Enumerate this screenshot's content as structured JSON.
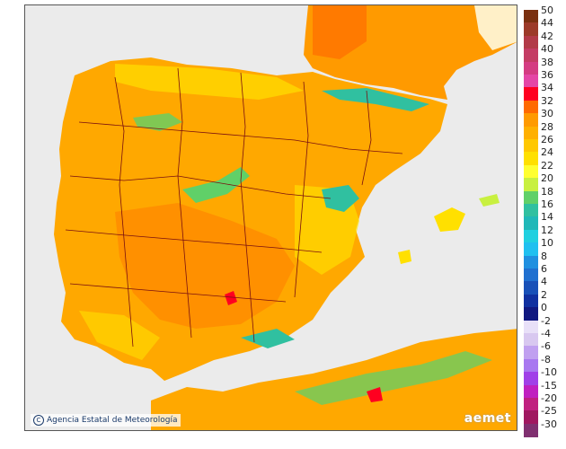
{
  "credit": {
    "text": "Agencia Estatal de Meteorología",
    "icon": "copyright-icon"
  },
  "logo": {
    "text": "aemet"
  },
  "legend": {
    "labels": [
      "50",
      "44",
      "42",
      "40",
      "38",
      "36",
      "34",
      "32",
      "30",
      "28",
      "26",
      "24",
      "22",
      "20",
      "18",
      "16",
      "14",
      "12",
      "10",
      "8",
      "6",
      "4",
      "2",
      "0",
      "-2",
      "-4",
      "-6",
      "-8",
      "-10",
      "-15",
      "-20",
      "-25",
      "-30"
    ],
    "colors": [
      "#7a3010",
      "#9c3a28",
      "#b23a48",
      "#c43c64",
      "#d43c82",
      "#e446a6",
      "#ff0020",
      "#ff6a00",
      "#ff9a00",
      "#ffb000",
      "#ffc800",
      "#ffe000",
      "#ffff30",
      "#c8f040",
      "#60d068",
      "#30c0a0",
      "#20b8b8",
      "#20d0e0",
      "#20c0f0",
      "#2090e0",
      "#2070d0",
      "#1850b8",
      "#1030a0",
      "#101880",
      "#e8e0f8",
      "#d8c8f0",
      "#c0a0f0",
      "#a878f0",
      "#a040e8",
      "#c020c0",
      "#c02080",
      "#a01860",
      "#803070"
    ]
  }
}
